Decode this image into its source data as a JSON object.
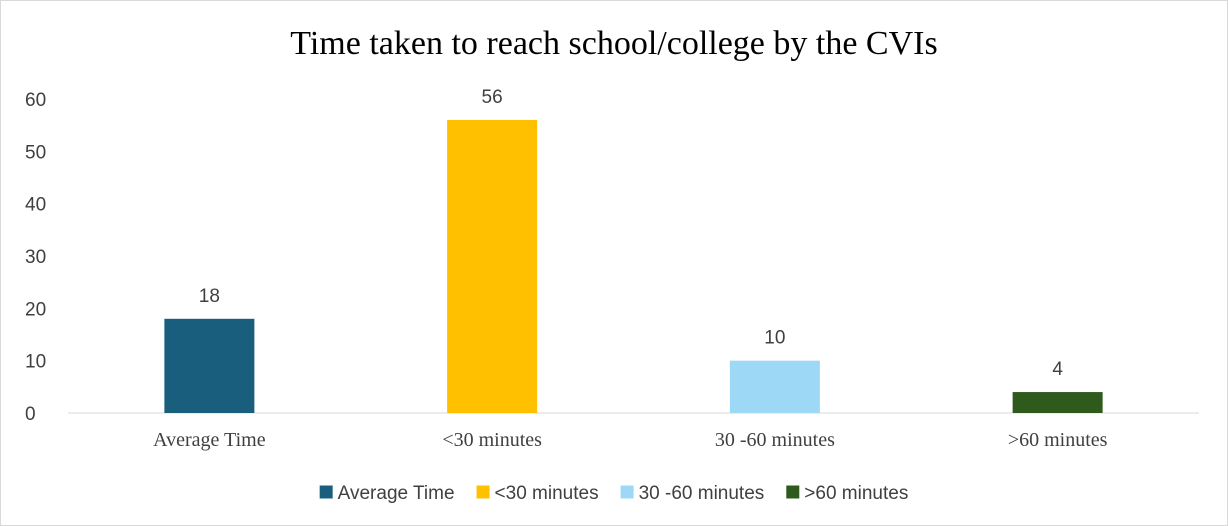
{
  "chart_data": {
    "type": "bar",
    "title": "Time taken to reach school/college by the CVIs",
    "xlabel": "",
    "ylabel": "",
    "categories": [
      "Average Time",
      "<30 minutes",
      "30 -60 minutes",
      ">60 minutes"
    ],
    "values": [
      18,
      56,
      10,
      4
    ],
    "colors": [
      "#1a5e7e",
      "#ffc000",
      "#9dd9f7",
      "#2e5a1c"
    ],
    "ylim": [
      0,
      60
    ],
    "yticks": [
      "0",
      "10",
      "20",
      "30",
      "40",
      "50",
      "60"
    ],
    "grid": false,
    "legend": {
      "position": "bottom",
      "entries": [
        "Average Time",
        "<30 minutes",
        "30 -60 minutes",
        ">60 minutes"
      ]
    }
  }
}
